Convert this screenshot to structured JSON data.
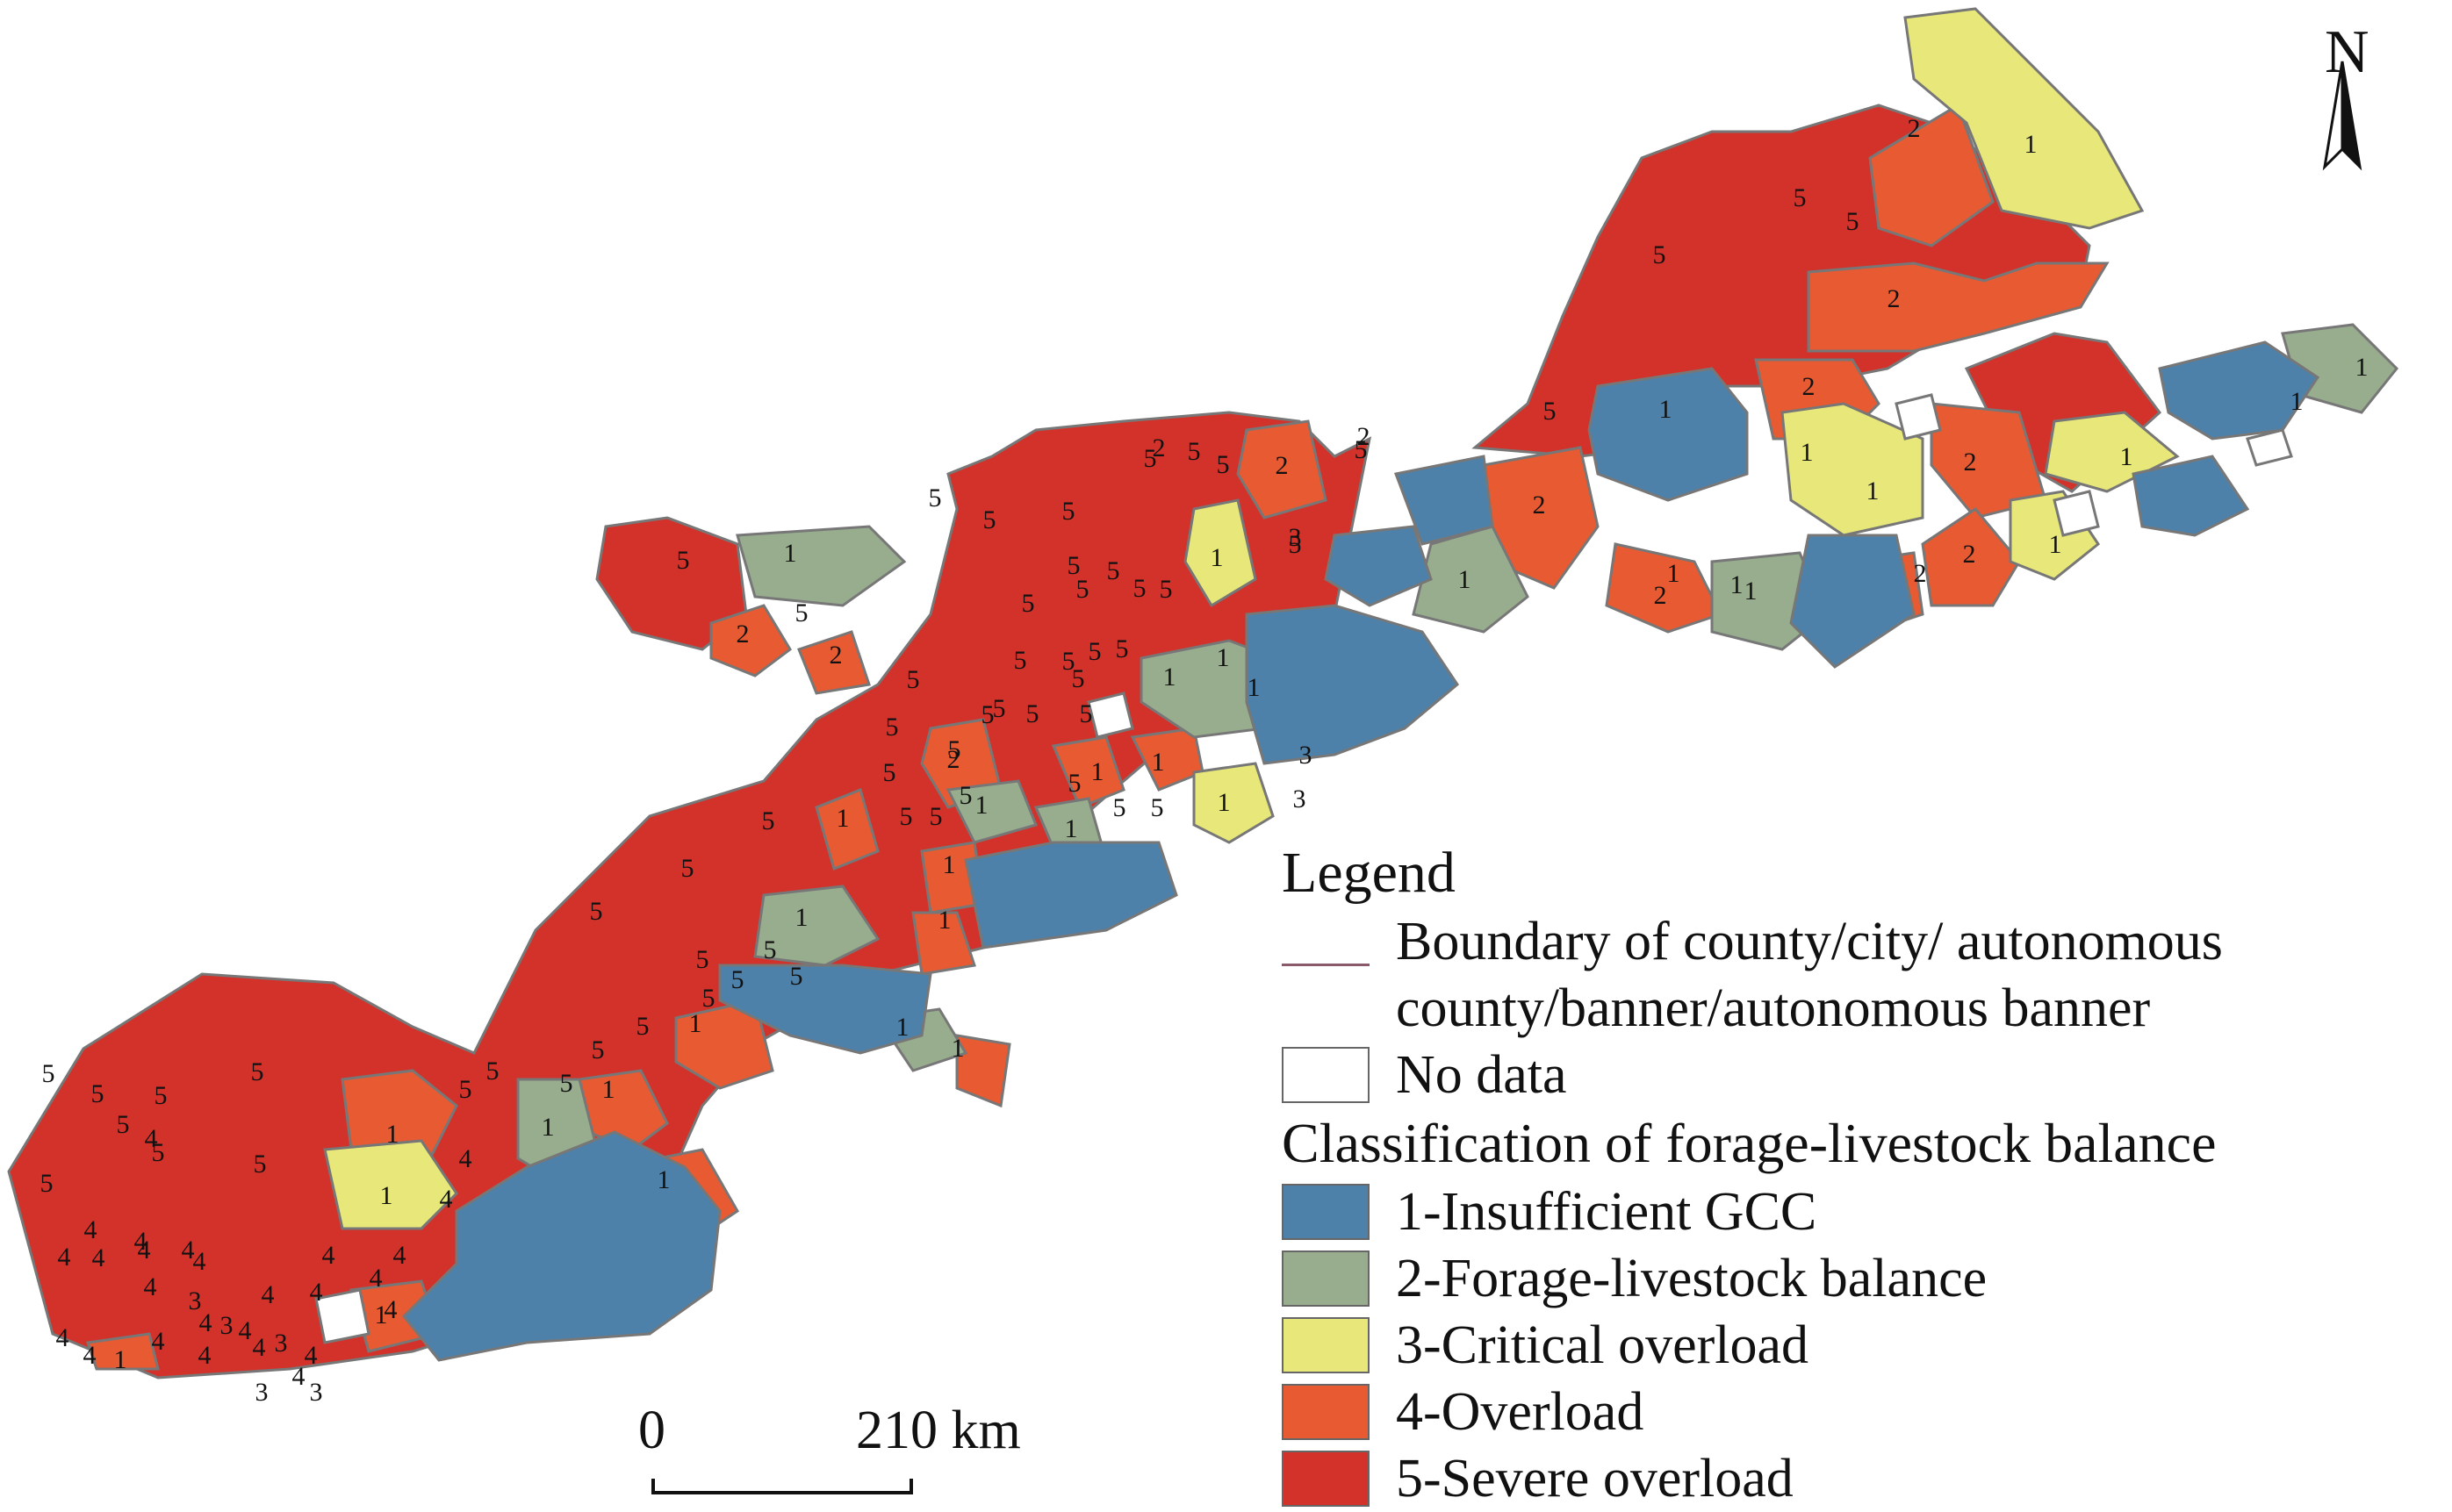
{
  "north_label": "N",
  "scale": {
    "start": "0",
    "end": "210 km"
  },
  "legend": {
    "title": "Legend",
    "boundary_label_1": "Boundary of county/city/ autonomous",
    "boundary_label_2": "county/banner/autonomous banner",
    "no_data_label": "No data",
    "classification_title": "Classification of forage-livestock balance",
    "classes": [
      {
        "id": 1,
        "label": "1-Insufficient GCC",
        "color": "#4e81aa"
      },
      {
        "id": 2,
        "label": "2-Forage-livestock balance",
        "color": "#97ad8e"
      },
      {
        "id": 3,
        "label": "3-Critical overload",
        "color": "#e8e87a"
      },
      {
        "id": 4,
        "label": "4-Overload",
        "color": "#e85a32"
      },
      {
        "id": 5,
        "label": "5-Severe overload",
        "color": "#d2322a"
      }
    ]
  },
  "region_labels": [
    "5",
    "5",
    "5",
    "5",
    "5",
    "5",
    "5",
    "5",
    "5",
    "5",
    "5",
    "5",
    "5",
    "5",
    "5",
    "5",
    "5",
    "5",
    "5",
    "5",
    "5",
    "5",
    "5",
    "5",
    "5",
    "5",
    "5",
    "5",
    "5",
    "5",
    "5",
    "5",
    "5",
    "5",
    "5",
    "5",
    "5",
    "5",
    "5",
    "5",
    "5",
    "5",
    "5",
    "5",
    "5",
    "5",
    "5",
    "5",
    "5",
    "5",
    "5",
    "5",
    "5",
    "5",
    "5",
    "5",
    "5",
    "5",
    "5",
    "5",
    "4",
    "4",
    "4",
    "4",
    "4",
    "4",
    "4",
    "4",
    "4",
    "4",
    "4",
    "4",
    "4",
    "4",
    "4",
    "4",
    "4",
    "4",
    "4",
    "4",
    "4",
    "4",
    "4",
    "4",
    "4",
    "4",
    "3",
    "3",
    "3",
    "3",
    "3",
    "3",
    "3",
    "3",
    "2",
    "2",
    "2",
    "2",
    "2",
    "2",
    "2",
    "2",
    "2",
    "2",
    "2",
    "2",
    "2",
    "2",
    "1",
    "1",
    "1",
    "1",
    "1",
    "1",
    "1",
    "1",
    "1",
    "1",
    "1",
    "1",
    "1",
    "1",
    "1",
    "1",
    "1",
    "1",
    "1",
    "1",
    "1",
    "1",
    "1",
    "1",
    "1",
    "1",
    "1",
    "1",
    "1",
    "1",
    "1",
    "1",
    "1",
    "1",
    "1",
    "1"
  ]
}
